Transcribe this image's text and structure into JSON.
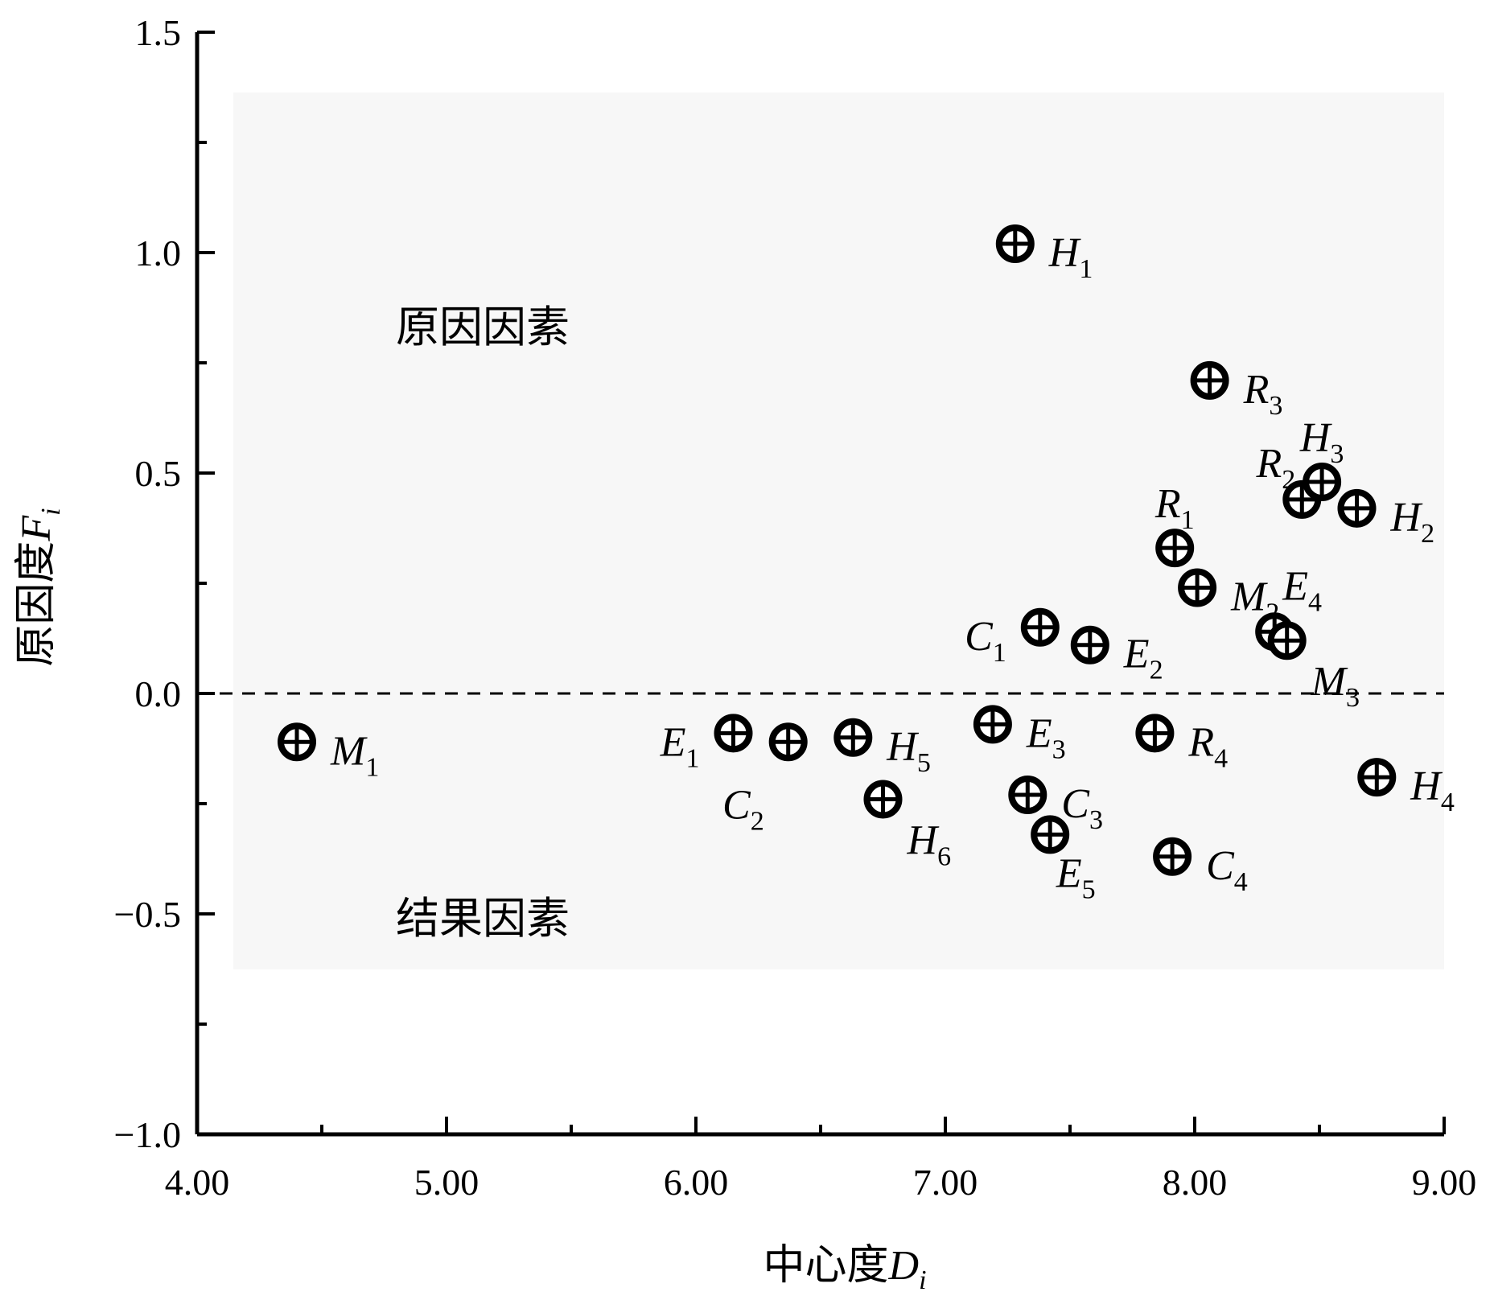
{
  "chart_data": {
    "type": "scatter",
    "xlabel": "中心度",
    "xlabel_symbol": "D",
    "xlabel_sub": "i",
    "ylabel": "原因度",
    "ylabel_symbol": "F",
    "ylabel_sub": "i",
    "xlim": [
      4.0,
      9.0
    ],
    "ylim": [
      -1.0,
      1.5
    ],
    "x_ticks": [
      4.0,
      5.0,
      6.0,
      7.0,
      8.0,
      9.0
    ],
    "x_tick_labels": [
      "4.00",
      "5.00",
      "6.00",
      "7.00",
      "8.00",
      "9.00"
    ],
    "y_ticks": [
      -1.0,
      -0.5,
      0.0,
      0.5,
      1.0,
      1.5
    ],
    "y_tick_labels": [
      "−1.0",
      "−0.5",
      "0.0",
      "0.5",
      "1.0",
      "1.5"
    ],
    "reference_line": {
      "y": 0.0,
      "style": "dashed"
    },
    "region_labels": {
      "upper": "原因因素",
      "lower": "结果因素"
    },
    "grid": false,
    "marker": "circle-plus",
    "points": [
      {
        "letter": "M",
        "sub": "1",
        "x": 4.4,
        "y": -0.11,
        "label_pos": "right"
      },
      {
        "letter": "E",
        "sub": "1",
        "x": 6.15,
        "y": -0.09,
        "label_pos": "left"
      },
      {
        "letter": "C",
        "sub": "2",
        "x": 6.37,
        "y": -0.11,
        "label_pos": "below-left"
      },
      {
        "letter": "H",
        "sub": "5",
        "x": 6.63,
        "y": -0.1,
        "label_pos": "right"
      },
      {
        "letter": "H",
        "sub": "6",
        "x": 6.75,
        "y": -0.24,
        "label_pos": "below-right"
      },
      {
        "letter": "H",
        "sub": "1",
        "x": 7.28,
        "y": 1.02,
        "label_pos": "right"
      },
      {
        "letter": "E",
        "sub": "3",
        "x": 7.19,
        "y": -0.07,
        "label_pos": "right"
      },
      {
        "letter": "C",
        "sub": "1",
        "x": 7.38,
        "y": 0.15,
        "label_pos": "left"
      },
      {
        "letter": "C",
        "sub": "3",
        "x": 7.33,
        "y": -0.23,
        "label_pos": "right"
      },
      {
        "letter": "E",
        "sub": "5",
        "x": 7.42,
        "y": -0.32,
        "label_pos": "below"
      },
      {
        "letter": "E",
        "sub": "2",
        "x": 7.58,
        "y": 0.11,
        "label_pos": "right"
      },
      {
        "letter": "R",
        "sub": "4",
        "x": 7.84,
        "y": -0.09,
        "label_pos": "right"
      },
      {
        "letter": "R",
        "sub": "1",
        "x": 7.92,
        "y": 0.33,
        "label_pos": "above"
      },
      {
        "letter": "C",
        "sub": "4",
        "x": 7.91,
        "y": -0.37,
        "label_pos": "right"
      },
      {
        "letter": "M",
        "sub": "2",
        "x": 8.01,
        "y": 0.24,
        "label_pos": "right"
      },
      {
        "letter": "R",
        "sub": "3",
        "x": 8.06,
        "y": 0.71,
        "label_pos": "right"
      },
      {
        "letter": "E",
        "sub": "4",
        "x": 8.32,
        "y": 0.14,
        "label_pos": "above-right"
      },
      {
        "letter": "M",
        "sub": "3",
        "x": 8.37,
        "y": 0.12,
        "label_pos": "below-right"
      },
      {
        "letter": "R",
        "sub": "2",
        "x": 8.43,
        "y": 0.44,
        "label_pos": "above-left"
      },
      {
        "letter": "H",
        "sub": "3",
        "x": 8.51,
        "y": 0.48,
        "label_pos": "above"
      },
      {
        "letter": "H",
        "sub": "2",
        "x": 8.65,
        "y": 0.42,
        "label_pos": "right"
      },
      {
        "letter": "H",
        "sub": "4",
        "x": 8.73,
        "y": -0.19,
        "label_pos": "right"
      }
    ]
  }
}
